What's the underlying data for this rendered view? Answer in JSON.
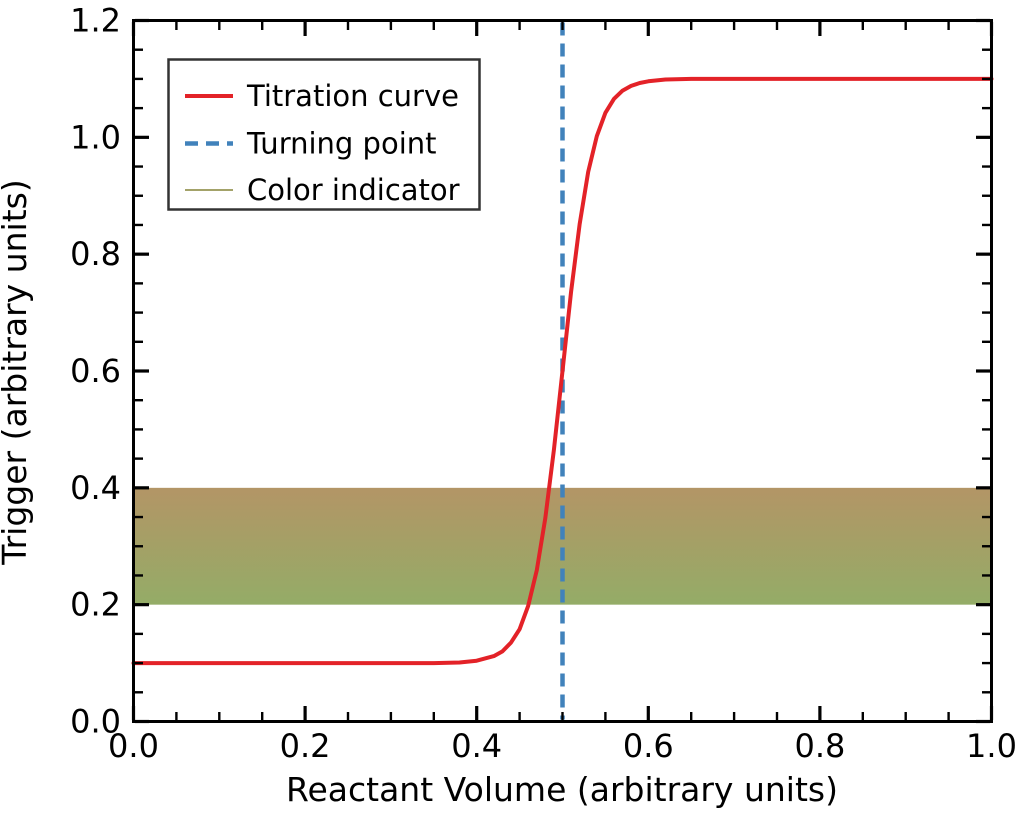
{
  "chart_data": {
    "type": "line",
    "title": "",
    "xlabel": "Reactant Volume (arbitrary units)",
    "ylabel": "Trigger (arbitrary units)",
    "xlim": [
      0.0,
      1.0
    ],
    "ylim": [
      0.0,
      1.2
    ],
    "grid": false,
    "x_ticks": [
      {
        "value": 0.0,
        "label": "0.0"
      },
      {
        "value": 0.2,
        "label": "0.2"
      },
      {
        "value": 0.4,
        "label": "0.4"
      },
      {
        "value": 0.6,
        "label": "0.6"
      },
      {
        "value": 0.8,
        "label": "0.8"
      },
      {
        "value": 1.0,
        "label": "1.0"
      }
    ],
    "y_ticks": [
      {
        "value": 0.0,
        "label": "0.0"
      },
      {
        "value": 0.2,
        "label": "0.2"
      },
      {
        "value": 0.4,
        "label": "0.4"
      },
      {
        "value": 0.6,
        "label": "0.6"
      },
      {
        "value": 0.8,
        "label": "0.8"
      },
      {
        "value": 1.0,
        "label": "1.0"
      },
      {
        "value": 1.2,
        "label": "1.2"
      }
    ],
    "minor_tick_step": 0.05,
    "legend": {
      "position": "upper-left",
      "entries": [
        {
          "label": "Titration curve",
          "color": "#e32228",
          "style": "solid"
        },
        {
          "label": "Turning point",
          "color": "#4182bb",
          "style": "dashed"
        },
        {
          "label": "Color indicator",
          "color": "#a3a269",
          "style": "thin"
        }
      ]
    },
    "series": [
      {
        "name": "Titration curve",
        "color": "#e32228",
        "baseline": 0.1,
        "plateau": 1.1,
        "points": [
          [
            0.0,
            0.1
          ],
          [
            0.05,
            0.1
          ],
          [
            0.1,
            0.1
          ],
          [
            0.15,
            0.1
          ],
          [
            0.2,
            0.1
          ],
          [
            0.25,
            0.1
          ],
          [
            0.3,
            0.1
          ],
          [
            0.35,
            0.1
          ],
          [
            0.38,
            0.101
          ],
          [
            0.4,
            0.104
          ],
          [
            0.42,
            0.112
          ],
          [
            0.43,
            0.12
          ],
          [
            0.44,
            0.135
          ],
          [
            0.45,
            0.158
          ],
          [
            0.46,
            0.198
          ],
          [
            0.47,
            0.259
          ],
          [
            0.48,
            0.348
          ],
          [
            0.49,
            0.465
          ],
          [
            0.5,
            0.6
          ],
          [
            0.51,
            0.736
          ],
          [
            0.52,
            0.852
          ],
          [
            0.53,
            0.941
          ],
          [
            0.54,
            1.002
          ],
          [
            0.55,
            1.042
          ],
          [
            0.56,
            1.066
          ],
          [
            0.57,
            1.08
          ],
          [
            0.58,
            1.088
          ],
          [
            0.59,
            1.093
          ],
          [
            0.6,
            1.096
          ],
          [
            0.62,
            1.099
          ],
          [
            0.65,
            1.1
          ],
          [
            0.7,
            1.1
          ],
          [
            0.75,
            1.1
          ],
          [
            0.8,
            1.1
          ],
          [
            0.85,
            1.1
          ],
          [
            0.9,
            1.1
          ],
          [
            0.95,
            1.1
          ],
          [
            1.0,
            1.1
          ]
        ]
      }
    ],
    "turning_point_x": 0.5,
    "indicator_band": {
      "y_min": 0.2,
      "y_max": 0.4,
      "color_top": "#b39566",
      "color_bottom": "#94ac67"
    },
    "frame_color": "#000000",
    "legend_border_color": "#333333"
  }
}
